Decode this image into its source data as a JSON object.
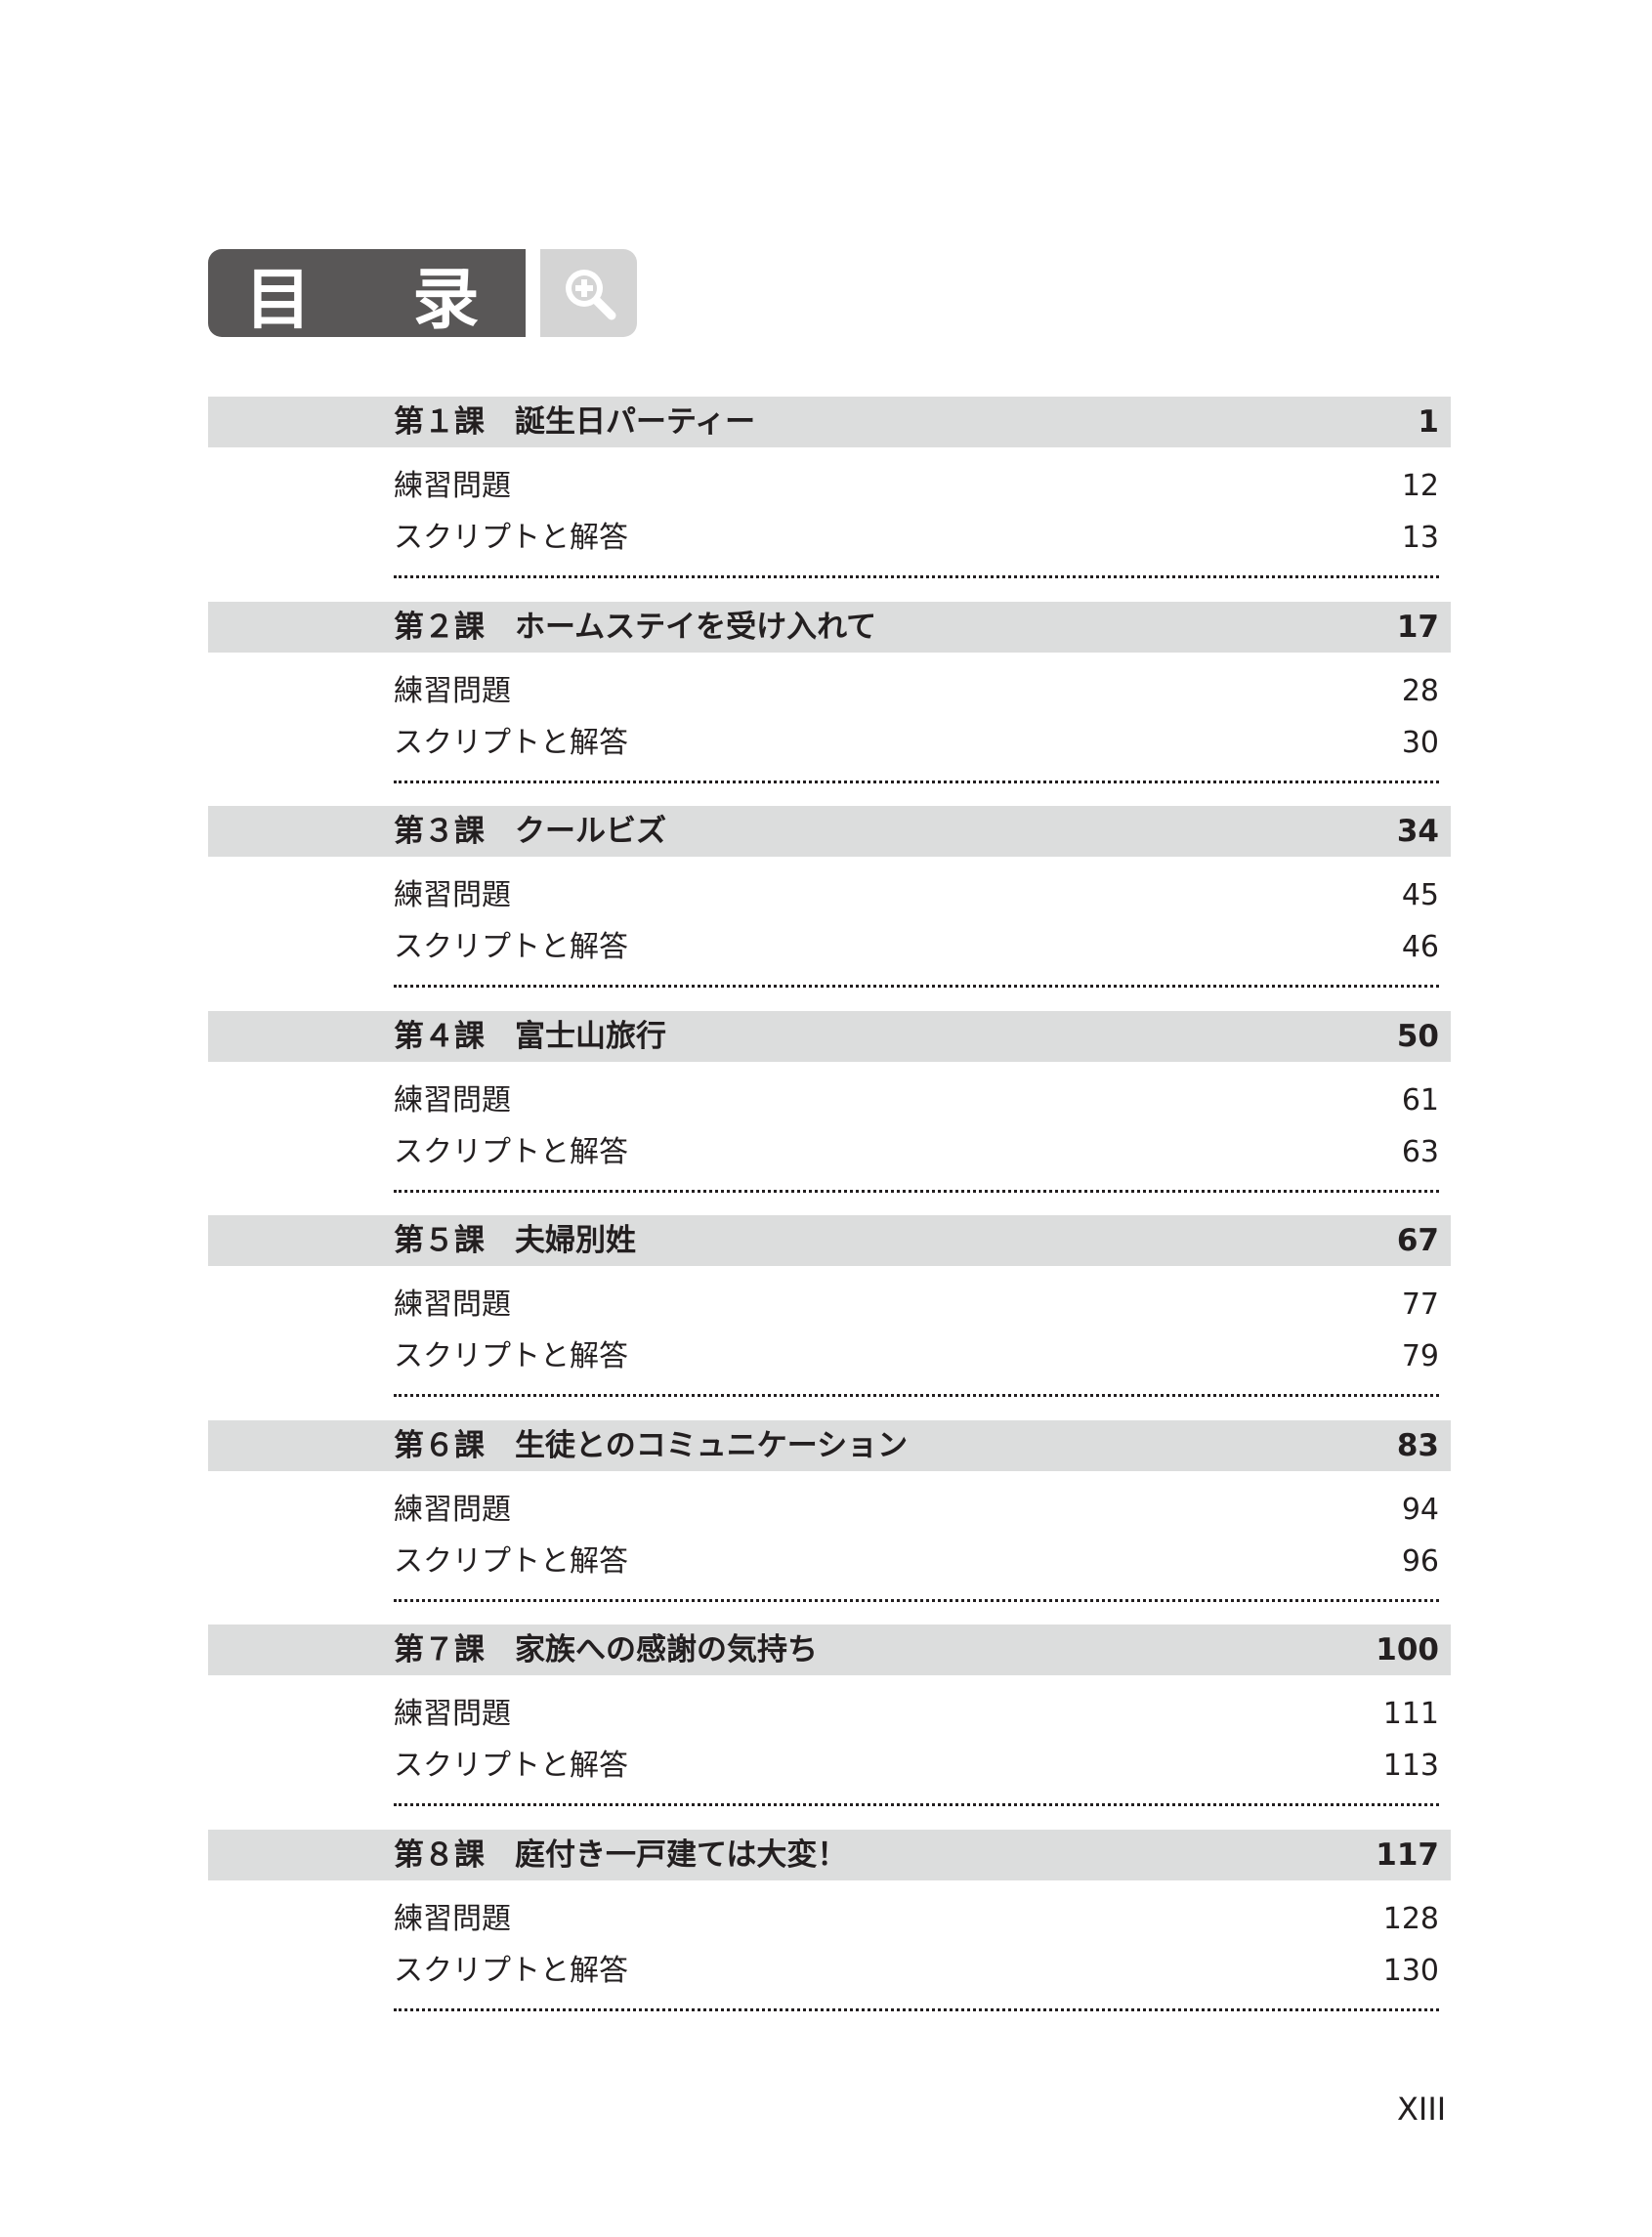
{
  "header": {
    "title": "目 录",
    "icon": "magnifier-plus-icon"
  },
  "chapters": [
    {
      "label": "第１課　誕生日パーティー",
      "page": "1",
      "items": [
        {
          "label": "練習問題",
          "page": "12"
        },
        {
          "label": "スクリプトと解答",
          "page": "13"
        }
      ]
    },
    {
      "label": "第２課　ホームステイを受け入れて",
      "page": "17",
      "items": [
        {
          "label": "練習問題",
          "page": "28"
        },
        {
          "label": "スクリプトと解答",
          "page": "30"
        }
      ]
    },
    {
      "label": "第３課　クールビズ",
      "page": "34",
      "items": [
        {
          "label": "練習問題",
          "page": "45"
        },
        {
          "label": "スクリプトと解答",
          "page": "46"
        }
      ]
    },
    {
      "label": "第４課　富士山旅行",
      "page": "50",
      "items": [
        {
          "label": "練習問題",
          "page": "61"
        },
        {
          "label": "スクリプトと解答",
          "page": "63"
        }
      ]
    },
    {
      "label": "第５課　夫婦別姓",
      "page": "67",
      "items": [
        {
          "label": "練習問題",
          "page": "77"
        },
        {
          "label": "スクリプトと解答",
          "page": "79"
        }
      ]
    },
    {
      "label": "第６課　生徒とのコミュニケーション",
      "page": "83",
      "items": [
        {
          "label": "練習問題",
          "page": "94"
        },
        {
          "label": "スクリプトと解答",
          "page": "96"
        }
      ]
    },
    {
      "label": "第７課　家族への感謝の気持ち",
      "page": "100",
      "items": [
        {
          "label": "練習問題",
          "page": "111"
        },
        {
          "label": "スクリプトと解答",
          "page": "113"
        }
      ]
    },
    {
      "label": "第８課　庭付き一戸建ては大変！",
      "page": "117",
      "items": [
        {
          "label": "練習問題",
          "page": "128"
        },
        {
          "label": "スクリプトと解答",
          "page": "130"
        }
      ]
    }
  ],
  "footer": {
    "page_number": "XIII"
  }
}
